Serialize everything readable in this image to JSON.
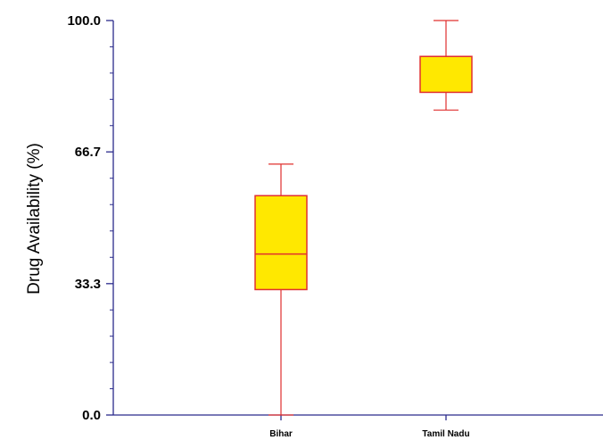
{
  "chart_data": {
    "type": "box",
    "ylabel": "Drug Availability (%)",
    "xlabel": "",
    "ylim": [
      0,
      100
    ],
    "yticks": [
      0.0,
      33.3,
      66.7,
      100.0
    ],
    "ytick_labels": [
      "0.0",
      "33.3",
      "66.7",
      "100.0"
    ],
    "minor_ticks_per_interval": 4,
    "categories": [
      "Bihar",
      "Tamil Nadu"
    ],
    "boxes": [
      {
        "category": "Bihar",
        "min": 0.0,
        "q1": 31.8,
        "median": 40.8,
        "q3": 55.6,
        "max": 63.6
      },
      {
        "category": "Tamil Nadu",
        "min": 77.3,
        "q1": 81.8,
        "median": 90.9,
        "q3": 90.9,
        "max": 100.0
      }
    ],
    "colors": {
      "box_fill": "#FFE800",
      "box_stroke": "#E0302F",
      "axis": "#2B2B8C"
    }
  }
}
